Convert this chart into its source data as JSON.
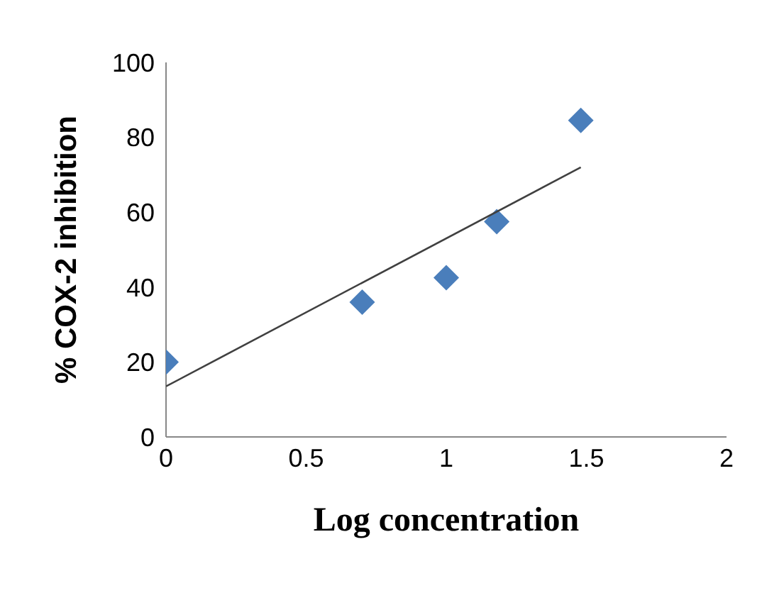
{
  "chart_data": {
    "type": "scatter",
    "xlabel": "Log concentration",
    "ylabel": "% COX-2 inhibition",
    "x": [
      0,
      0.7,
      1,
      1.18,
      1.48
    ],
    "series": [
      {
        "color": "#4a7ebb",
        "marker": "diamond",
        "values": [
          20,
          36,
          42.5,
          57.5,
          84.5
        ]
      },
      {
        "type": "line",
        "color": "#404040",
        "marker": "none",
        "x": [
          0,
          1.48
        ],
        "values": [
          13.5,
          72
        ]
      }
    ],
    "xlim": [
      0,
      2
    ],
    "xticks": [
      0,
      0.5,
      1,
      1.5,
      2
    ],
    "ylim": [
      0,
      100
    ],
    "yticks": [
      0,
      20,
      40,
      60,
      80,
      100
    ],
    "grid": false,
    "legend": false
  }
}
